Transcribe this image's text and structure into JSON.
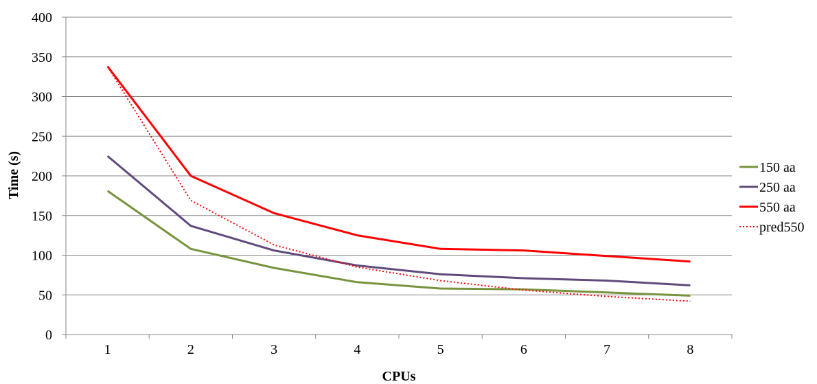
{
  "chart_data": {
    "type": "line",
    "title": "",
    "xlabel": "CPUs",
    "ylabel": "Time (s)",
    "categories": [
      "1",
      "2",
      "3",
      "4",
      "5",
      "6",
      "7",
      "8"
    ],
    "ylim": [
      0,
      400
    ],
    "yticks": [
      0,
      50,
      100,
      150,
      200,
      250,
      300,
      350,
      400
    ],
    "grid": "horizontal",
    "legend_position": "right",
    "series": [
      {
        "name": "150 aa",
        "color": "#77933C",
        "style": "solid",
        "values": [
          181,
          108,
          84,
          66,
          58,
          57,
          53,
          49
        ]
      },
      {
        "name": "250 aa",
        "color": "#604A7B",
        "style": "solid",
        "values": [
          225,
          137,
          106,
          87,
          76,
          71,
          68,
          62
        ]
      },
      {
        "name": "550 aa",
        "color": "#FF0000",
        "style": "solid",
        "values": [
          338,
          200,
          153,
          125,
          108,
          106,
          99,
          92
        ]
      },
      {
        "name": "pred550",
        "color": "#FF0000",
        "style": "dotted",
        "values": [
          338,
          169,
          113,
          85,
          68,
          56,
          48,
          42
        ]
      }
    ]
  }
}
